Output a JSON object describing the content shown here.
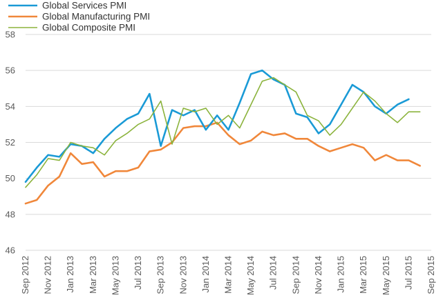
{
  "chart_data": {
    "type": "line",
    "title": "",
    "xlabel": "",
    "ylabel": "",
    "ylim": [
      46,
      58
    ],
    "yticks": [
      46,
      48,
      50,
      52,
      54,
      56,
      58
    ],
    "grid": "horizontal",
    "legend_position": "top-left",
    "x": [
      "Sep 2012",
      "Oct 2012",
      "Nov 2012",
      "Dec 2012",
      "Jan 2013",
      "Feb 2013",
      "Mar 2013",
      "Apr 2013",
      "May 2013",
      "Jun 2013",
      "Jul 2013",
      "Aug 2013",
      "Sep 2013",
      "Oct 2013",
      "Nov 2013",
      "Dec 2013",
      "Jan 2014",
      "Feb 2014",
      "Mar 2014",
      "Apr 2014",
      "May 2014",
      "Jun 2014",
      "Jul 2014",
      "Aug 2014",
      "Sep 2014",
      "Oct 2014",
      "Nov 2014",
      "Dec 2014",
      "Jan 2015",
      "Feb 2015",
      "Mar 2015",
      "Apr 2015",
      "May 2015",
      "Jun 2015",
      "Jul 2015",
      "Aug 2015",
      "Sep 2015"
    ],
    "x_tick_labels": [
      "Sep 2012",
      "Nov 2012",
      "Jan 2013",
      "Mar 2013",
      "May 2013",
      "Jul 2013",
      "Sep 2013",
      "Nov 2013",
      "Jan 2014",
      "Mar 2014",
      "May 2014",
      "Jul 2014",
      "Sep 2014",
      "Nov 2014",
      "Jan 2015",
      "Mar 2015",
      "May 2015",
      "Jul 2015",
      "Sep 2015"
    ],
    "series": [
      {
        "name": "Global Services PMI",
        "color": "#1a9ad6",
        "values": [
          49.8,
          50.6,
          51.3,
          51.2,
          51.9,
          51.8,
          51.4,
          52.2,
          52.8,
          53.3,
          53.6,
          54.7,
          51.8,
          53.8,
          53.5,
          53.8,
          52.7,
          53.5,
          52.7,
          54.2,
          55.8,
          56.0,
          55.5,
          55.2,
          53.6,
          53.4,
          52.5,
          53.0,
          54.1,
          55.2,
          54.8,
          54.0,
          53.6,
          54.1,
          54.4,
          null,
          null
        ]
      },
      {
        "name": "Global Manufacturing PMI",
        "color": "#f0873a",
        "values": [
          48.6,
          48.8,
          49.6,
          50.1,
          51.4,
          50.8,
          50.9,
          50.1,
          50.4,
          50.4,
          50.6,
          51.5,
          51.6,
          52.0,
          52.8,
          52.9,
          52.9,
          53.1,
          52.4,
          51.9,
          52.1,
          52.6,
          52.4,
          52.5,
          52.2,
          52.2,
          51.8,
          51.5,
          51.7,
          51.9,
          51.7,
          51.0,
          51.3,
          51.0,
          51.0,
          50.7,
          null
        ]
      },
      {
        "name": "Global Composite PMI",
        "color": "#8bb33c",
        "values": [
          49.5,
          50.2,
          51.1,
          51.0,
          52.0,
          51.8,
          51.7,
          51.3,
          52.1,
          52.5,
          53.0,
          53.3,
          54.3,
          51.9,
          53.9,
          53.7,
          53.9,
          53.0,
          53.5,
          52.8,
          54.1,
          55.4,
          55.6,
          55.2,
          54.8,
          53.5,
          53.2,
          52.4,
          53.0,
          53.9,
          54.8,
          54.3,
          53.6,
          53.1,
          53.7,
          53.7,
          null
        ]
      }
    ]
  }
}
